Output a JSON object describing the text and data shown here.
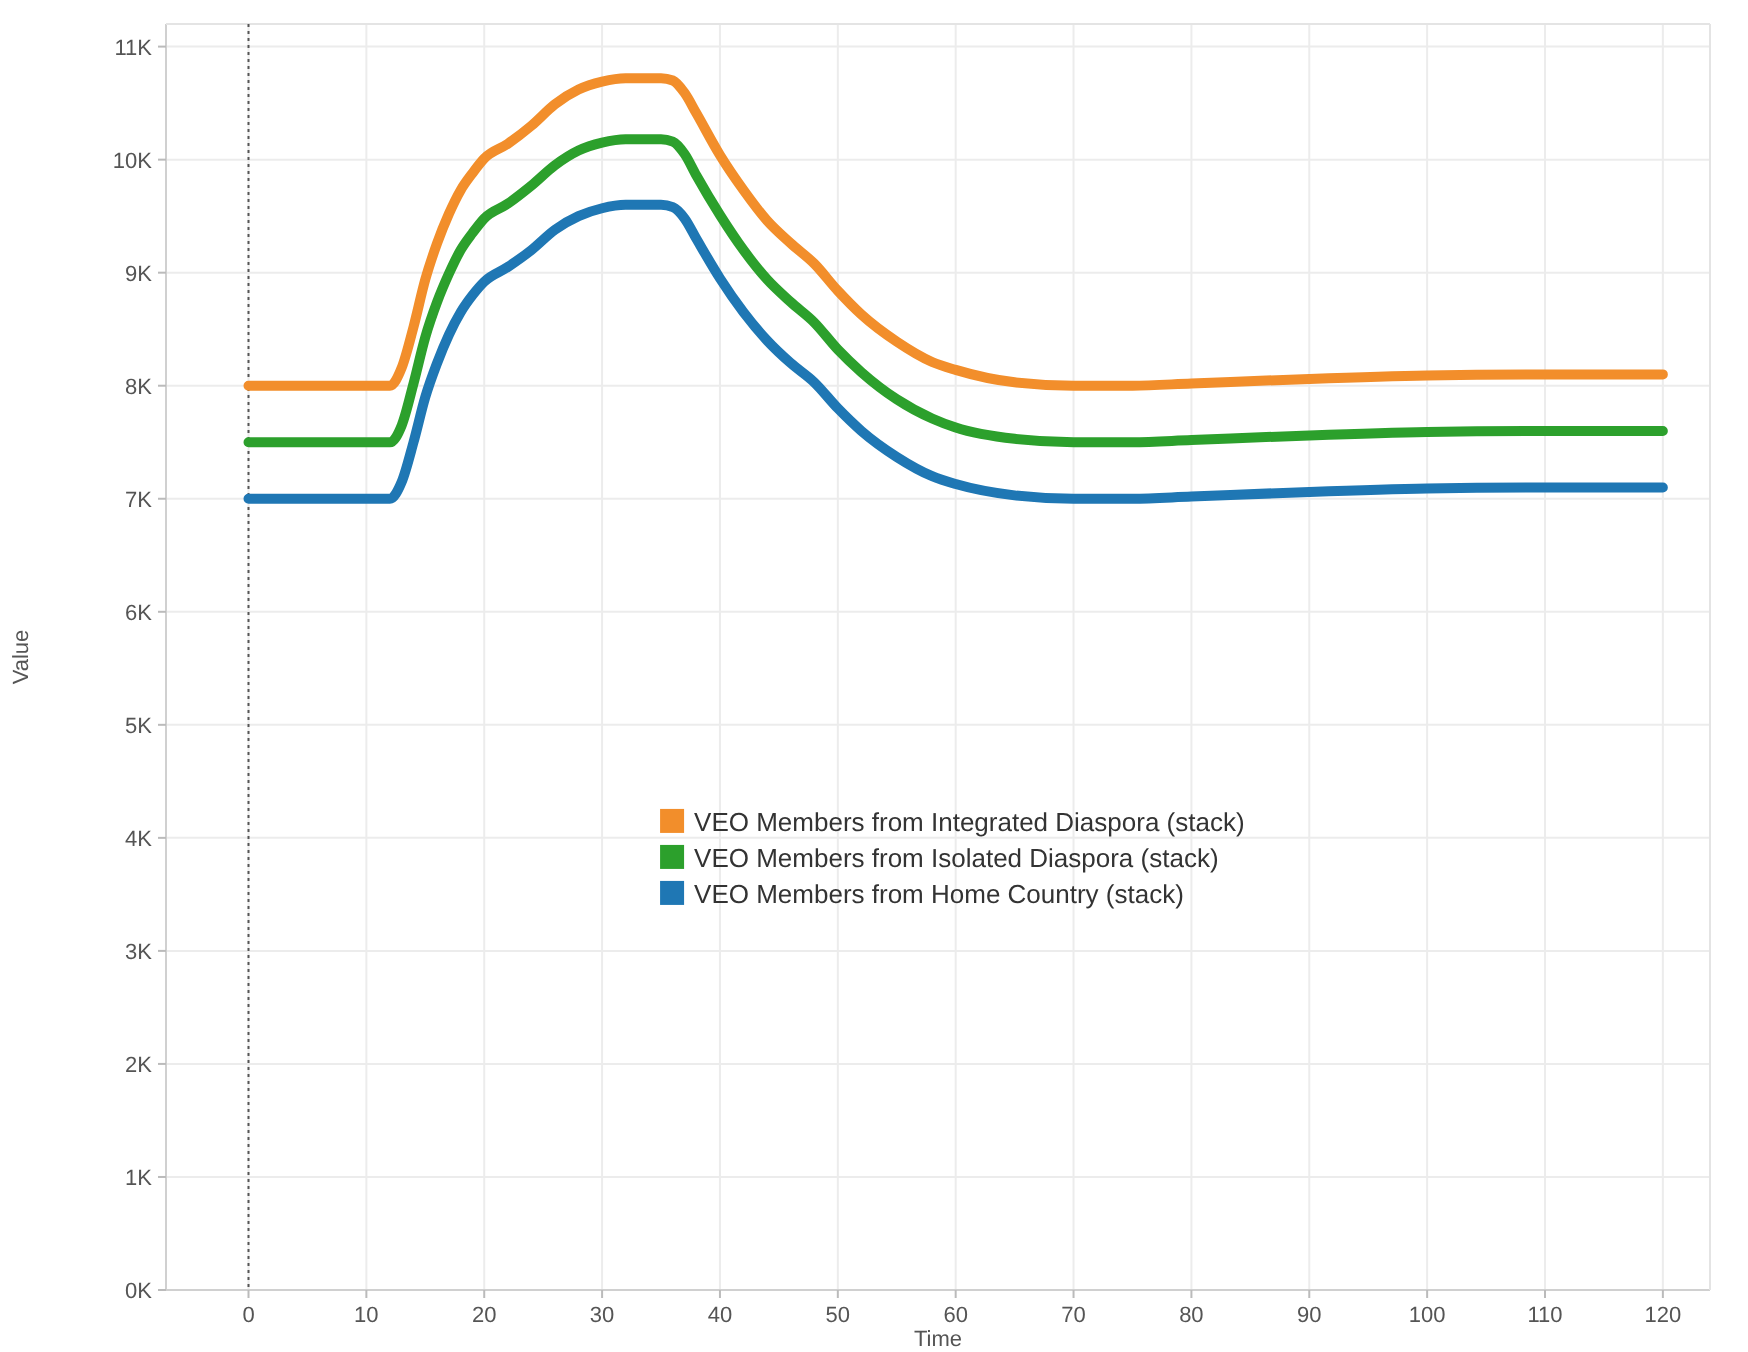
{
  "chart_data": {
    "type": "line",
    "xlabel": "Time",
    "ylabel": "Value",
    "x": [
      0,
      12,
      13,
      14,
      15,
      16,
      17,
      18,
      19,
      20,
      22,
      24,
      26,
      28,
      30,
      32,
      35,
      36,
      37,
      38,
      40,
      42,
      44,
      46,
      48,
      50,
      52,
      55,
      58,
      60,
      65,
      70,
      75,
      80,
      90,
      100,
      110,
      120
    ],
    "series": [
      {
        "name": "VEO Members from Integrated Diaspora (stack)",
        "color": "#f28e2b",
        "values": [
          8000,
          8000,
          8160,
          8520,
          8940,
          9260,
          9520,
          9730,
          9880,
          10010,
          10140,
          10300,
          10490,
          10620,
          10690,
          10720,
          10720,
          10700,
          10590,
          10410,
          10040,
          9730,
          9460,
          9260,
          9080,
          8840,
          8630,
          8390,
          8210,
          8140,
          8030,
          8000,
          8000,
          8020,
          8060,
          8090,
          8100,
          8100
        ]
      },
      {
        "name": "VEO Members from Isolated Diaspora (stack)",
        "color": "#2ca02c",
        "values": [
          7500,
          7500,
          7650,
          8020,
          8430,
          8740,
          8990,
          9200,
          9350,
          9480,
          9610,
          9770,
          9950,
          10080,
          10150,
          10180,
          10180,
          10160,
          10050,
          9860,
          9510,
          9200,
          8940,
          8740,
          8560,
          8320,
          8120,
          7880,
          7710,
          7630,
          7530,
          7500,
          7500,
          7520,
          7560,
          7590,
          7600,
          7600
        ]
      },
      {
        "name": "VEO Members from Home Country (stack)",
        "color": "#1f77b4",
        "values": [
          7000,
          7000,
          7150,
          7500,
          7900,
          8200,
          8450,
          8650,
          8800,
          8920,
          9050,
          9200,
          9380,
          9500,
          9570,
          9600,
          9600,
          9580,
          9480,
          9300,
          8950,
          8650,
          8400,
          8200,
          8030,
          7800,
          7600,
          7370,
          7200,
          7130,
          7030,
          7000,
          7000,
          7020,
          7060,
          7090,
          7100,
          7100
        ]
      }
    ],
    "xlim": [
      -7,
      124
    ],
    "xticks": [
      0,
      10,
      20,
      30,
      40,
      50,
      60,
      70,
      80,
      90,
      100,
      110,
      120
    ],
    "ylim": [
      0,
      11200
    ],
    "yticks": [
      {
        "value": 0,
        "label": "0K"
      },
      {
        "value": 1000,
        "label": "1K"
      },
      {
        "value": 2000,
        "label": "2K"
      },
      {
        "value": 3000,
        "label": "3K"
      },
      {
        "value": 4000,
        "label": "4K"
      },
      {
        "value": 5000,
        "label": "5K"
      },
      {
        "value": 6000,
        "label": "6K"
      },
      {
        "value": 7000,
        "label": "7K"
      },
      {
        "value": 8000,
        "label": "8K"
      },
      {
        "value": 9000,
        "label": "9K"
      },
      {
        "value": 10000,
        "label": "10K"
      },
      {
        "value": 11000,
        "label": "11K"
      }
    ],
    "ref_lines": [
      {
        "axis": "x",
        "value": 0,
        "color": "#555555",
        "line_style": "dotted"
      }
    ],
    "grid": true,
    "legend": "center",
    "marker": "none",
    "line_style": "solid"
  }
}
